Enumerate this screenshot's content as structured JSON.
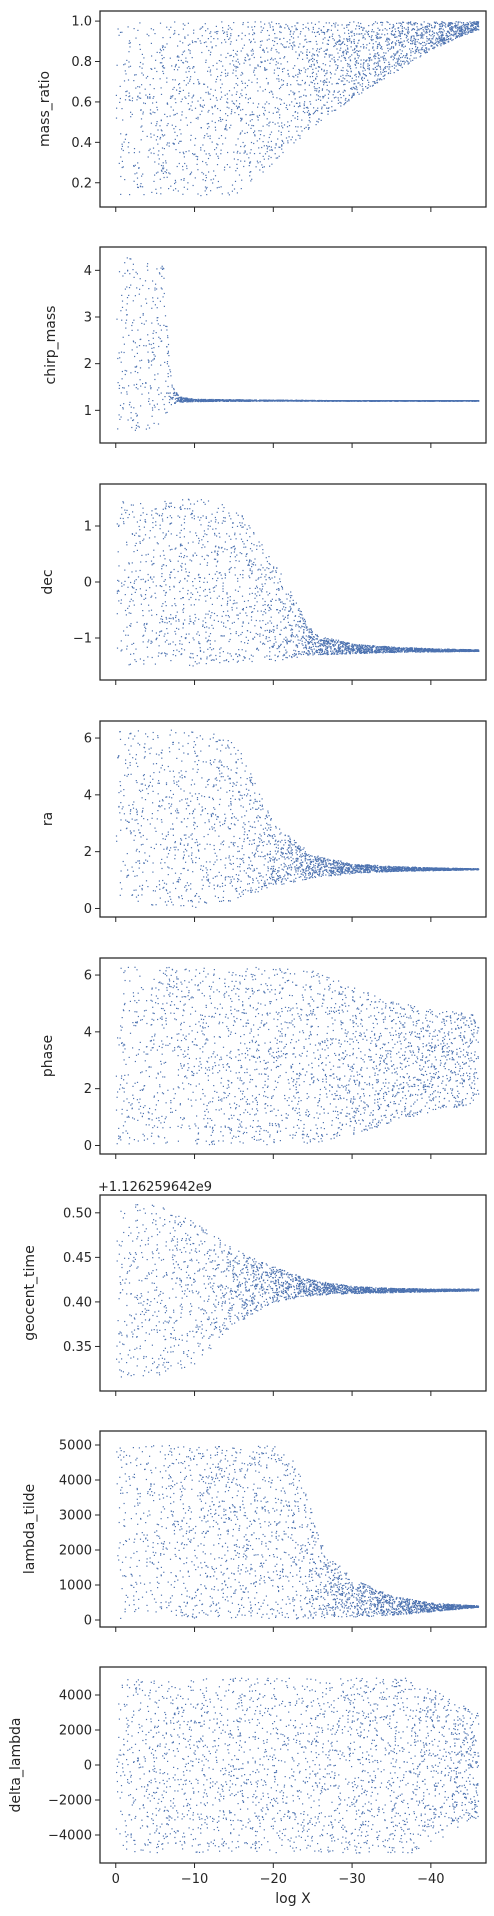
{
  "chart_data": {
    "type": "scatter",
    "point_color": "#4c72b0",
    "xlabel": "log X",
    "xlim": [
      2,
      -47
    ],
    "xticks": [
      0,
      -10,
      -20,
      -30,
      -40
    ],
    "xtick_labels": [
      "0",
      "−10",
      "−20",
      "−30",
      "−40"
    ],
    "panels": [
      {
        "ylabel": "mass_ratio",
        "ylim": [
          0.08,
          1.05
        ],
        "yticks": [
          0.2,
          0.4,
          0.6,
          0.8,
          1.0
        ],
        "ytick_labels": [
          "0.2",
          "0.4",
          "0.6",
          "0.8",
          "1.0"
        ],
        "envelope": {
          "x": [
            0,
            -5,
            -10,
            -15,
            -20,
            -25,
            -30,
            -35,
            -40,
            -44,
            -46
          ],
          "lo": [
            0.13,
            0.13,
            0.13,
            0.14,
            0.3,
            0.48,
            0.62,
            0.74,
            0.86,
            0.93,
            0.96
          ],
          "hi": [
            1.0,
            1.0,
            1.0,
            1.0,
            1.0,
            1.0,
            1.0,
            1.0,
            1.0,
            1.0,
            1.0
          ]
        }
      },
      {
        "ylabel": "chirp_mass",
        "ylim": [
          0.3,
          4.5
        ],
        "yticks": [
          1,
          2,
          3,
          4
        ],
        "ytick_labels": [
          "1",
          "2",
          "3",
          "4"
        ],
        "envelope": {
          "x": [
            0,
            -2,
            -4,
            -6,
            -7,
            -8,
            -10,
            -20,
            -30,
            -40,
            -46
          ],
          "lo": [
            0.6,
            0.5,
            0.55,
            0.8,
            1.1,
            1.18,
            1.2,
            1.21,
            1.21,
            1.21,
            1.21
          ],
          "hi": [
            4.3,
            4.3,
            4.2,
            4.1,
            1.6,
            1.3,
            1.25,
            1.23,
            1.22,
            1.22,
            1.22
          ]
        }
      },
      {
        "ylabel": "dec",
        "ylim": [
          -1.75,
          1.75
        ],
        "yticks": [
          -1,
          0,
          1
        ],
        "ytick_labels": [
          "−1",
          "0",
          "1"
        ],
        "envelope": {
          "x": [
            0,
            -5,
            -10,
            -15,
            -20,
            -25,
            -30,
            -35,
            -40,
            -46
          ],
          "lo": [
            -1.5,
            -1.5,
            -1.5,
            -1.45,
            -1.4,
            -1.3,
            -1.27,
            -1.25,
            -1.24,
            -1.23
          ],
          "hi": [
            1.5,
            1.5,
            1.5,
            1.4,
            0.4,
            -0.9,
            -1.1,
            -1.15,
            -1.18,
            -1.2
          ]
        }
      },
      {
        "ylabel": "ra",
        "ylim": [
          -0.3,
          6.6
        ],
        "yticks": [
          0,
          2,
          4,
          6
        ],
        "ytick_labels": [
          "0",
          "2",
          "4",
          "6"
        ],
        "envelope": {
          "x": [
            0,
            -5,
            -10,
            -15,
            -20,
            -25,
            -30,
            -35,
            -40,
            -46
          ],
          "lo": [
            0.05,
            0.05,
            0.05,
            0.3,
            0.8,
            1.1,
            1.25,
            1.32,
            1.35,
            1.38
          ],
          "hi": [
            6.3,
            6.3,
            6.3,
            6.0,
            3.0,
            1.9,
            1.6,
            1.5,
            1.45,
            1.42
          ]
        }
      },
      {
        "ylabel": "phase",
        "ylim": [
          -0.3,
          6.6
        ],
        "yticks": [
          0,
          2,
          4,
          6
        ],
        "ytick_labels": [
          "0",
          "2",
          "4",
          "6"
        ],
        "envelope": {
          "x": [
            0,
            -5,
            -10,
            -15,
            -20,
            -25,
            -30,
            -35,
            -40,
            -44,
            -46
          ],
          "lo": [
            0.05,
            0.05,
            0.05,
            0.05,
            0.05,
            0.1,
            0.4,
            0.8,
            1.2,
            1.4,
            1.5
          ],
          "hi": [
            6.3,
            6.3,
            6.3,
            6.3,
            6.3,
            6.2,
            5.6,
            5.1,
            4.8,
            4.7,
            4.65
          ]
        }
      },
      {
        "ylabel": "geocent_time",
        "offset_label": "+1.126259642e9",
        "ylim": [
          0.3,
          0.52
        ],
        "yticks": [
          0.35,
          0.4,
          0.45,
          0.5
        ],
        "ytick_labels": [
          "0.35",
          "0.40",
          "0.45",
          "0.50"
        ],
        "envelope": {
          "x": [
            0,
            -5,
            -10,
            -15,
            -20,
            -25,
            -30,
            -35,
            -40,
            -46
          ],
          "lo": [
            0.315,
            0.315,
            0.33,
            0.375,
            0.4,
            0.408,
            0.41,
            0.411,
            0.412,
            0.413
          ],
          "hi": [
            0.51,
            0.51,
            0.49,
            0.46,
            0.44,
            0.425,
            0.418,
            0.416,
            0.415,
            0.415
          ]
        }
      },
      {
        "ylabel": "lambda_tilde",
        "ylim": [
          -200,
          5400
        ],
        "yticks": [
          0,
          1000,
          2000,
          3000,
          4000,
          5000
        ],
        "ytick_labels": [
          "0",
          "1000",
          "2000",
          "3000",
          "4000",
          "5000"
        ],
        "envelope": {
          "x": [
            0,
            -5,
            -10,
            -15,
            -20,
            -23,
            -26,
            -30,
            -35,
            -40,
            -46
          ],
          "lo": [
            50,
            50,
            50,
            50,
            50,
            50,
            60,
            90,
            150,
            250,
            380
          ],
          "hi": [
            5000,
            5000,
            5000,
            5000,
            5000,
            4500,
            2200,
            1200,
            700,
            500,
            420
          ]
        }
      },
      {
        "ylabel": "delta_lambda",
        "ylim": [
          -5600,
          5600
        ],
        "yticks": [
          -4000,
          -2000,
          0,
          2000,
          4000
        ],
        "ytick_labels": [
          "−4000",
          "−2000",
          "0",
          "2000",
          "4000"
        ],
        "envelope": {
          "x": [
            0,
            -10,
            -20,
            -30,
            -38,
            -42,
            -46
          ],
          "lo": [
            -5000,
            -5000,
            -5000,
            -5000,
            -5000,
            -4000,
            -3000
          ],
          "hi": [
            5000,
            5000,
            5000,
            5000,
            5000,
            4000,
            3000
          ]
        }
      }
    ]
  }
}
